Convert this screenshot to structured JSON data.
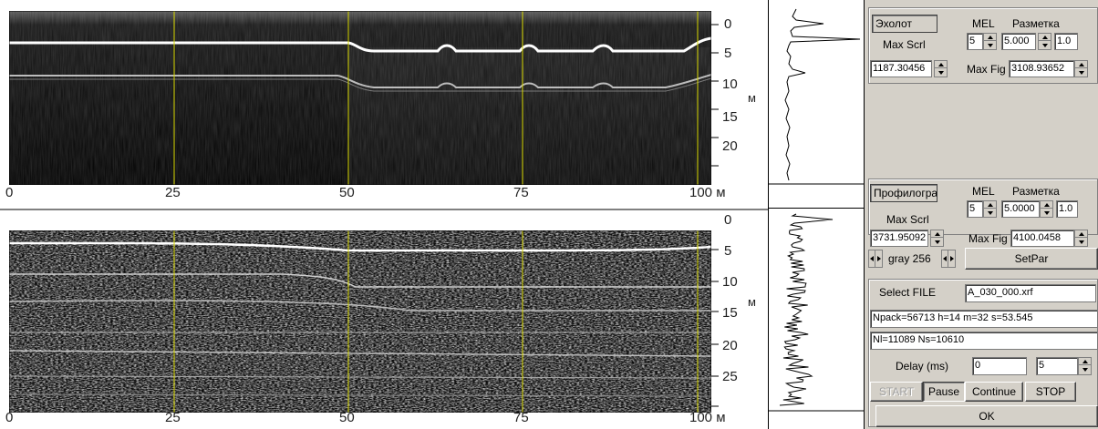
{
  "echogram_top": {
    "depth_ticks": [
      "0",
      "5",
      "10",
      "15",
      "20"
    ],
    "depth_unit": "м",
    "distance_ticks": [
      "0",
      "25",
      "50",
      "75",
      "100 м"
    ]
  },
  "echogram_bottom": {
    "depth_ticks": [
      "0",
      "5",
      "10",
      "15",
      "20",
      "25"
    ],
    "depth_unit": "м",
    "distance_ticks": [
      "0",
      "25",
      "50",
      "75",
      "100 м"
    ]
  },
  "echosounder_group": {
    "tab_label": "Эхолот",
    "mel_label": "MEL",
    "markup_label": "Разметка",
    "mel_value": "5",
    "markup_value": "5.000",
    "scale_value": "1.0",
    "max_scrl_label": "Max Scrl",
    "max_scrl_value": "1187.30456",
    "max_fig_label": "Max Fig",
    "max_fig_value": "3108.93652"
  },
  "profiler_group": {
    "tab_label": "Профилограс",
    "mel_label": "MEL",
    "markup_label": "Разметка",
    "mel_value": "5",
    "markup_value": "5.0000",
    "scale_value": "1.0",
    "max_scrl_label": "Max Scrl",
    "max_scrl_value": "3731.95092",
    "max_fig_label": "Max Fig",
    "max_fig_value": "4100.0458"
  },
  "palette": {
    "value": "gray 256",
    "setpar_label": "SetPar"
  },
  "file_group": {
    "select_file_label": "Select FILE",
    "file_name": "A_030_000.xrf",
    "info_line1": "Npack=56713 h=14 m=32 s=53.545",
    "info_line2": "Nl=11089 Ns=10610",
    "delay_label": "Delay (ms)",
    "delay_value": "0",
    "step_value": "5",
    "start_label": "START",
    "pause_label": "Pause",
    "continue_label": "Continue",
    "stop_label": "STOP",
    "ok_label": "OK"
  },
  "colors": {
    "grid_line": "#d8d800",
    "echo_background": "#000000",
    "window_face": "#d4d0c8"
  }
}
